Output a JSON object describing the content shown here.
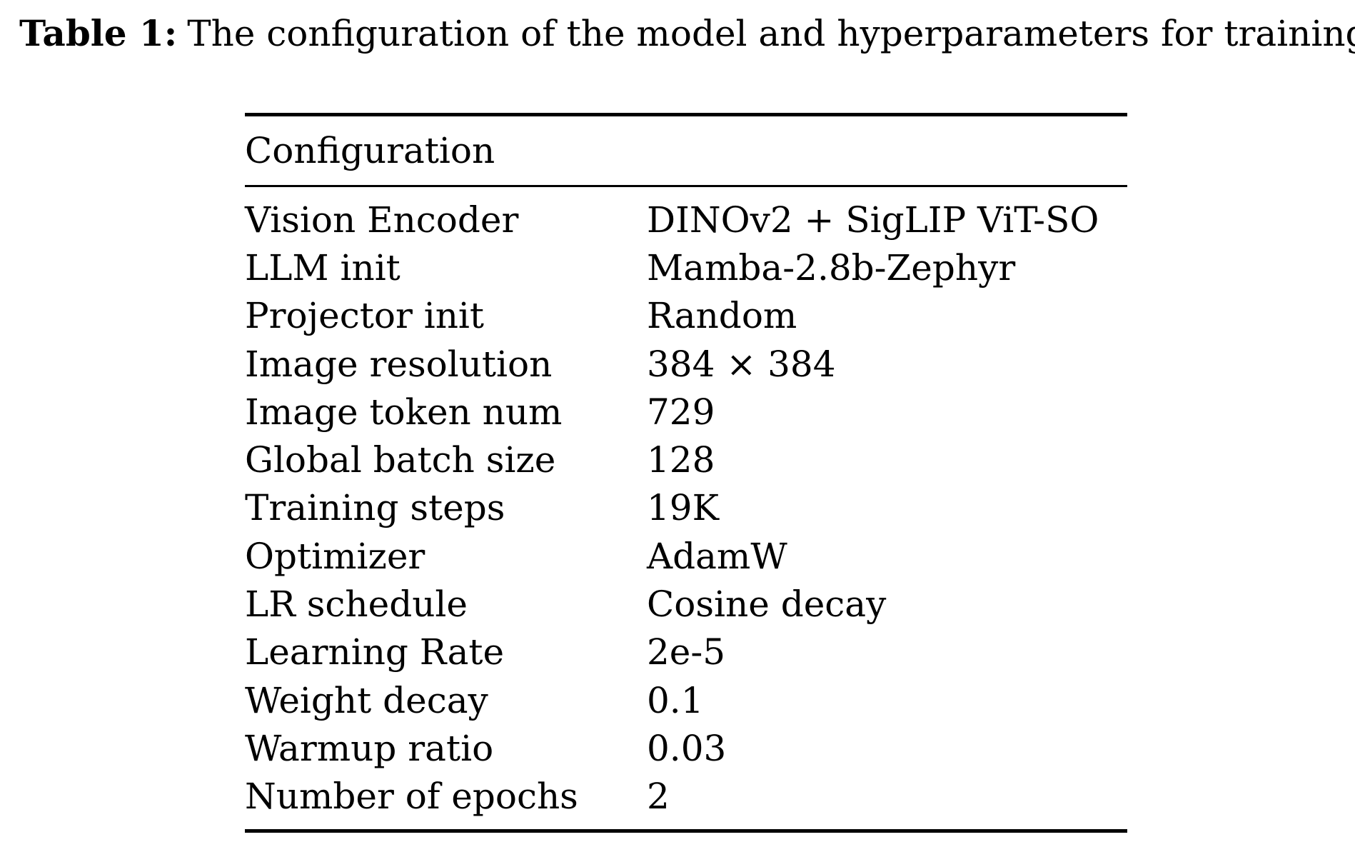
{
  "caption": {
    "label": "Table 1:",
    "text": "The configuration of the model and hyperparameters for training."
  },
  "table": {
    "header": "Configuration",
    "rows": [
      {
        "key": "Vision Encoder",
        "value": "DINOv2 + SigLIP ViT-SO"
      },
      {
        "key": "LLM init",
        "value": "Mamba-2.8b-Zephyr"
      },
      {
        "key": "Projector init",
        "value": "Random"
      },
      {
        "key": "Image resolution",
        "value": "384 × 384"
      },
      {
        "key": "Image token num",
        "value": "729"
      },
      {
        "key": "Global batch size",
        "value": "128"
      },
      {
        "key": "Training steps",
        "value": "19K"
      },
      {
        "key": "Optimizer",
        "value": "AdamW"
      },
      {
        "key": "LR schedule",
        "value": "Cosine decay"
      },
      {
        "key": "Learning Rate",
        "value": "2e-5"
      },
      {
        "key": "Weight decay",
        "value": "0.1"
      },
      {
        "key": "Warmup ratio",
        "value": "0.03"
      },
      {
        "key": "Number of epochs",
        "value": "2"
      }
    ]
  }
}
